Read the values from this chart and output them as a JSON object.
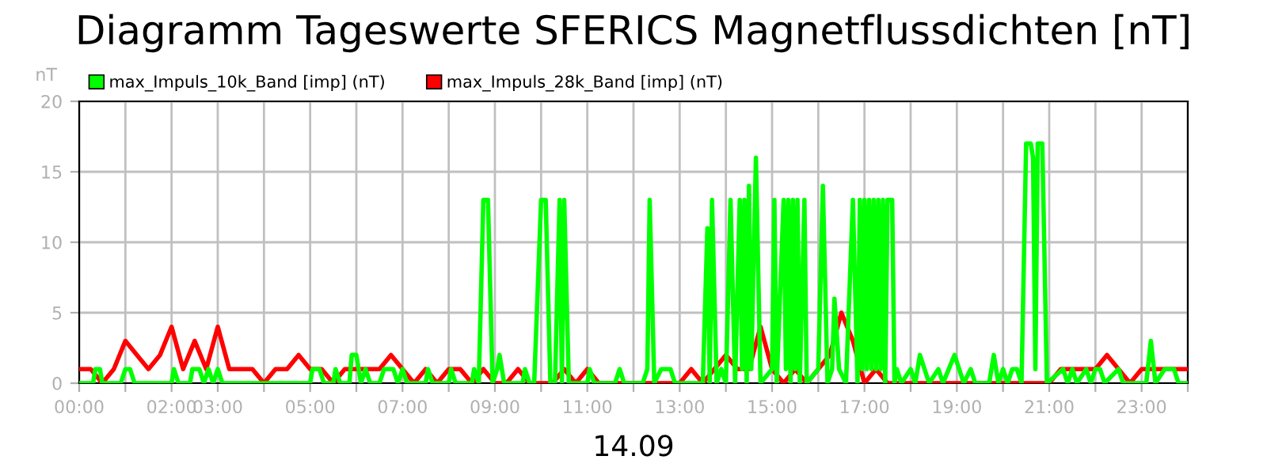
{
  "chart_data": {
    "type": "line",
    "title": "Diagramm Tageswerte SFERICS Magnetflussdichten [nT]",
    "ylabel": "nT",
    "xlabel": "14.09",
    "xlim": [
      0,
      24
    ],
    "xticks": [
      {
        "value": 0,
        "label": "00:00"
      },
      {
        "value": 1,
        "label": null
      },
      {
        "value": 2,
        "label": "02:00"
      },
      {
        "value": 3,
        "label": "03:00"
      },
      {
        "value": 4,
        "label": null
      },
      {
        "value": 5,
        "label": "05:00"
      },
      {
        "value": 6,
        "label": null
      },
      {
        "value": 7,
        "label": "07:00"
      },
      {
        "value": 8,
        "label": null
      },
      {
        "value": 9,
        "label": "09:00"
      },
      {
        "value": 10,
        "label": null
      },
      {
        "value": 11,
        "label": "11:00"
      },
      {
        "value": 12,
        "label": null
      },
      {
        "value": 13,
        "label": "13:00"
      },
      {
        "value": 14,
        "label": null
      },
      {
        "value": 15,
        "label": "15:00"
      },
      {
        "value": 16,
        "label": null
      },
      {
        "value": 17,
        "label": "17:00"
      },
      {
        "value": 18,
        "label": null
      },
      {
        "value": 19,
        "label": "19:00"
      },
      {
        "value": 20,
        "label": null
      },
      {
        "value": 21,
        "label": "21:00"
      },
      {
        "value": 22,
        "label": null
      },
      {
        "value": 23,
        "label": "23:00"
      },
      {
        "value": 24,
        "label": null
      }
    ],
    "ylim": [
      0,
      20
    ],
    "yticks": [
      0,
      5,
      10,
      15,
      20
    ],
    "grid": true,
    "legend": "top left",
    "marker": "none",
    "line_style": "solid",
    "series": [
      {
        "name": "max_Impuls_28k_Band [imp] (nT)",
        "color": "#ff0000",
        "x": [
          0,
          0.25,
          0.5,
          0.75,
          1,
          1.25,
          1.5,
          1.75,
          2,
          2.25,
          2.5,
          2.75,
          3,
          3.25,
          3.5,
          3.75,
          4,
          4.25,
          4.5,
          4.75,
          5,
          5.25,
          5.5,
          5.75,
          6,
          6.25,
          6.5,
          6.75,
          7,
          7.25,
          7.5,
          7.75,
          8,
          8.25,
          8.5,
          8.75,
          9,
          9.25,
          9.5,
          9.75,
          10,
          10.25,
          10.5,
          10.75,
          11,
          11.25,
          11.5,
          11.75,
          12,
          12.25,
          12.5,
          12.75,
          13,
          13.25,
          13.5,
          13.75,
          14,
          14.25,
          14.5,
          14.75,
          15,
          15.25,
          15.5,
          15.75,
          16,
          16.25,
          16.5,
          16.75,
          17,
          17.25,
          17.5,
          17.75,
          18,
          18.5,
          19,
          19.5,
          20,
          20.5,
          21,
          21.25,
          21.5,
          21.75,
          22,
          22.25,
          22.5,
          22.75,
          23,
          23.25,
          23.5,
          23.75,
          24
        ],
        "values": [
          1,
          1,
          0,
          1,
          3,
          2,
          1,
          2,
          4,
          1,
          3,
          1,
          4,
          1,
          1,
          1,
          0,
          1,
          1,
          2,
          1,
          1,
          0,
          1,
          1,
          1,
          1,
          2,
          1,
          0,
          1,
          0,
          1,
          1,
          0,
          1,
          0,
          0,
          1,
          0,
          0,
          0,
          1,
          0,
          1,
          0,
          0,
          0,
          0,
          0,
          0,
          0,
          0,
          1,
          0,
          1,
          2,
          1,
          1,
          4,
          1,
          0,
          1,
          0,
          1,
          2,
          5,
          3,
          0,
          1,
          0,
          0,
          0,
          0,
          0,
          0,
          0,
          0,
          0,
          1,
          1,
          1,
          1,
          2,
          1,
          0,
          1,
          1,
          1,
          1,
          1
        ]
      },
      {
        "name": "max_Impuls_10k_Band [imp] (nT)",
        "color": "#00ff00",
        "x": [
          0,
          0.3,
          0.35,
          0.45,
          0.5,
          0.9,
          1,
          1.1,
          1.2,
          2,
          2.05,
          2.15,
          2.4,
          2.45,
          2.6,
          2.7,
          2.8,
          2.9,
          3,
          3.1,
          5,
          5.05,
          5.2,
          5.3,
          5.5,
          5.55,
          5.65,
          5.85,
          5.9,
          6,
          6.1,
          6.2,
          6.3,
          6.5,
          6.6,
          6.8,
          6.9,
          7,
          7.1,
          7.5,
          7.55,
          7.65,
          8,
          8.05,
          8.15,
          8.5,
          8.55,
          8.65,
          8.75,
          8.85,
          8.95,
          9.05,
          9.1,
          9.2,
          9.6,
          9.65,
          9.75,
          9.85,
          10,
          10.1,
          10.2,
          10.3,
          10.4,
          10.45,
          10.5,
          10.6,
          11,
          11.05,
          11.15,
          11.6,
          11.7,
          11.8,
          12.2,
          12.3,
          12.35,
          12.45,
          12.6,
          12.8,
          12.9,
          13.5,
          13.6,
          13.65,
          13.7,
          13.8,
          13.9,
          14,
          14.1,
          14.2,
          14.3,
          14.35,
          14.4,
          14.45,
          14.5,
          14.55,
          14.65,
          14.75,
          15,
          15.05,
          15.1,
          15.25,
          15.3,
          15.35,
          15.4,
          15.45,
          15.5,
          15.55,
          15.6,
          15.7,
          15.75,
          16,
          16.1,
          16.2,
          16.3,
          16.35,
          16.45,
          16.6,
          16.75,
          16.85,
          16.9,
          16.95,
          17,
          17.05,
          17.1,
          17.15,
          17.2,
          17.25,
          17.3,
          17.35,
          17.4,
          17.45,
          17.5,
          17.6,
          17.65,
          17.7,
          17.8,
          18,
          18.1,
          18.15,
          18.2,
          18.3,
          18.4,
          18.6,
          18.7,
          18.95,
          19.05,
          19.15,
          19.3,
          19.4,
          19.7,
          19.8,
          19.9,
          20,
          20.1,
          20.2,
          20.3,
          20.4,
          20.5,
          20.6,
          20.65,
          20.7,
          20.75,
          20.85,
          20.95,
          21.3,
          21.4,
          21.5,
          21.6,
          21.8,
          21.9,
          22,
          22.1,
          22.2,
          22.5,
          22.6,
          23.1,
          23.2,
          23.3,
          23.5,
          23.7,
          23.8,
          24
        ],
        "values": [
          0,
          0,
          1,
          1,
          0,
          0,
          1,
          1,
          0,
          0,
          1,
          0,
          0,
          1,
          1,
          0,
          1,
          0,
          1,
          0,
          0,
          1,
          1,
          0,
          0,
          1,
          0,
          0,
          2,
          2,
          0,
          1,
          0,
          0,
          1,
          1,
          0,
          1,
          0,
          0,
          1,
          0,
          0,
          1,
          0,
          0,
          1,
          0,
          13,
          13,
          0,
          1,
          2,
          0,
          0,
          1,
          0,
          0,
          13,
          13,
          0,
          0,
          13,
          0,
          13,
          0,
          0,
          1,
          0,
          0,
          1,
          0,
          0,
          1,
          13,
          0,
          1,
          1,
          0,
          0,
          11,
          0,
          13,
          0,
          1,
          0,
          13,
          0,
          13,
          1,
          13,
          0,
          14,
          1,
          16,
          0,
          1,
          13,
          0,
          13,
          1,
          13,
          0,
          13,
          1,
          13,
          0,
          13,
          0,
          1,
          14,
          0,
          1,
          6,
          1,
          0,
          13,
          0,
          13,
          1,
          13,
          1,
          13,
          1,
          13,
          1,
          13,
          1,
          13,
          0,
          13,
          13,
          0,
          1,
          0,
          1,
          0,
          1,
          2,
          1,
          0,
          1,
          0,
          2,
          1,
          0,
          1,
          0,
          0,
          2,
          0,
          1,
          0,
          1,
          1,
          0,
          17,
          17,
          16,
          1,
          17,
          17,
          0,
          1,
          0,
          1,
          0,
          1,
          0,
          1,
          1,
          0,
          1,
          0,
          0,
          3,
          0,
          1,
          1,
          0,
          0
        ]
      }
    ]
  }
}
